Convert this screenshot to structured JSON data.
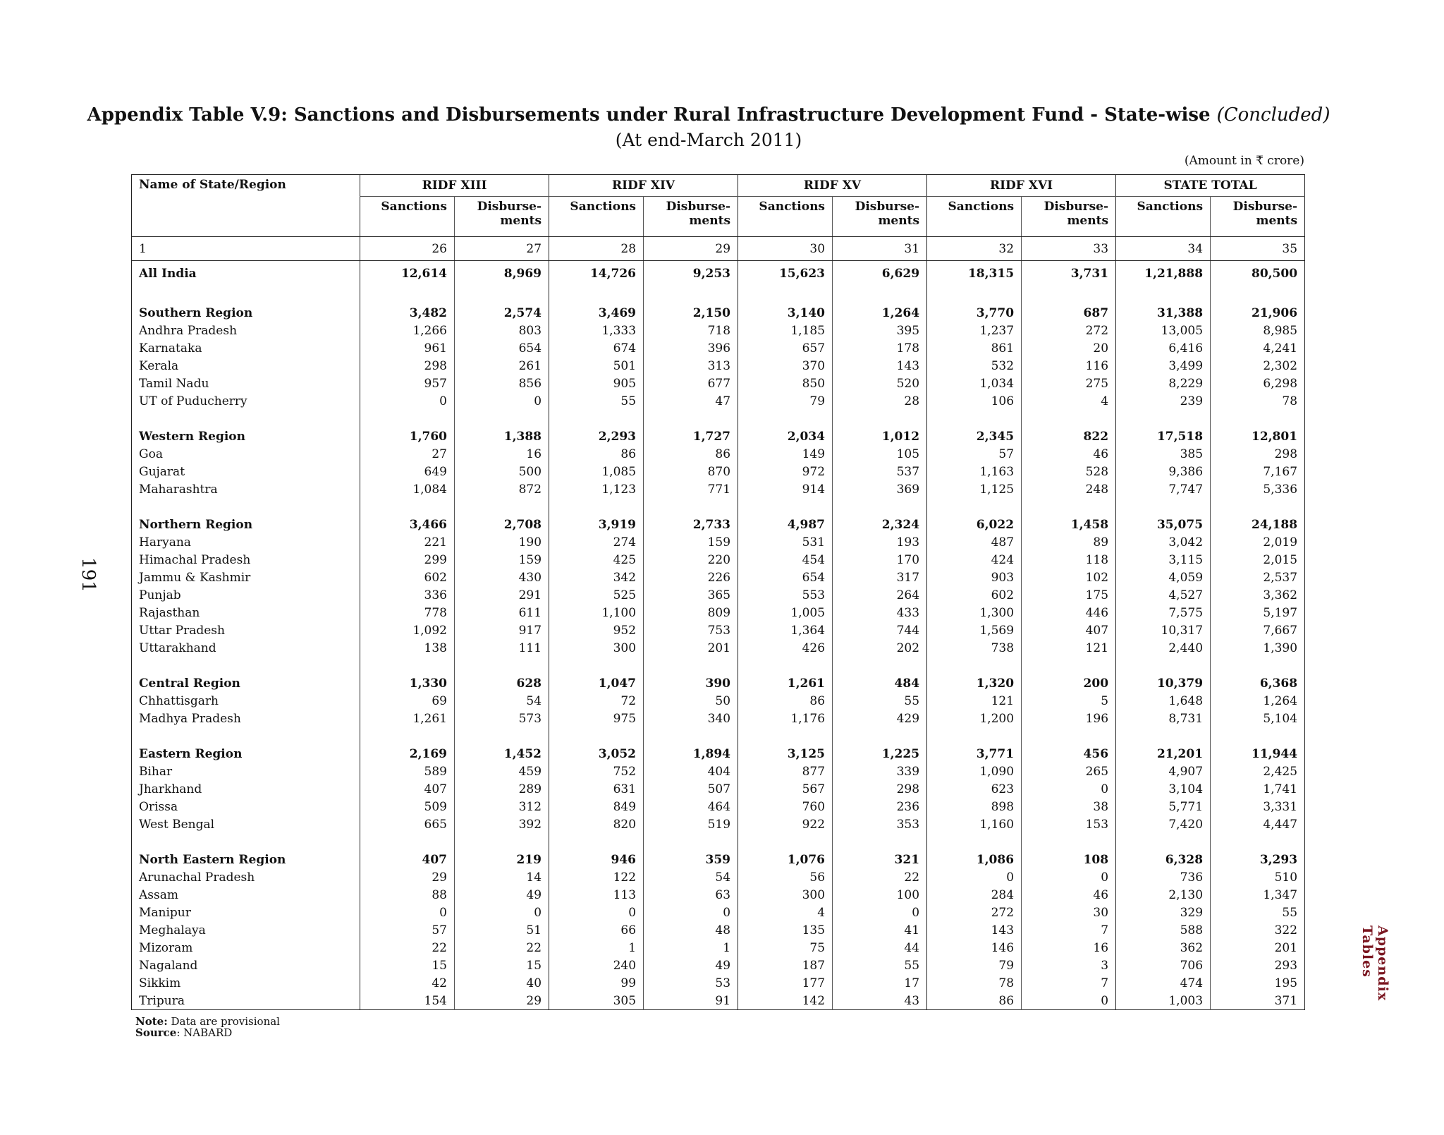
{
  "header": {
    "title": "Appendix Table V.9: Sanctions and Disbursements under Rural Infrastructure Development Fund - State-wise",
    "title_suffix": "(Concluded)",
    "subtitle": "(At end-March 2011)",
    "unit": "(Amount in ₹ crore)"
  },
  "page_number": "191",
  "side_label": "Appendix Tables",
  "table": {
    "name_header": "Name of State/Region",
    "groups": [
      "RIDF XIII",
      "RIDF XIV",
      "RIDF XV",
      "RIDF XVI",
      "STATE TOTAL"
    ],
    "subheaders": [
      "Sanctions",
      "Disburse-\nments"
    ],
    "column_numbers": [
      "1",
      "26",
      "27",
      "28",
      "29",
      "30",
      "31",
      "32",
      "33",
      "34",
      "35"
    ],
    "sections": [
      [
        [
          "All India",
          "12,614",
          "8,969",
          "14,726",
          "9,253",
          "15,623",
          "6,629",
          "18,315",
          "3,731",
          "1,21,888",
          "80,500"
        ]
      ],
      [
        [
          "Southern Region",
          "3,482",
          "2,574",
          "3,469",
          "2,150",
          "3,140",
          "1,264",
          "3,770",
          "687",
          "31,388",
          "21,906"
        ],
        [
          "Andhra Pradesh",
          "1,266",
          "803",
          "1,333",
          "718",
          "1,185",
          "395",
          "1,237",
          "272",
          "13,005",
          "8,985"
        ],
        [
          "Karnataka",
          "961",
          "654",
          "674",
          "396",
          "657",
          "178",
          "861",
          "20",
          "6,416",
          "4,241"
        ],
        [
          "Kerala",
          "298",
          "261",
          "501",
          "313",
          "370",
          "143",
          "532",
          "116",
          "3,499",
          "2,302"
        ],
        [
          "Tamil Nadu",
          "957",
          "856",
          "905",
          "677",
          "850",
          "520",
          "1,034",
          "275",
          "8,229",
          "6,298"
        ],
        [
          "UT of Puducherry",
          "0",
          "0",
          "55",
          "47",
          "79",
          "28",
          "106",
          "4",
          "239",
          "78"
        ]
      ],
      [
        [
          "Western Region",
          "1,760",
          "1,388",
          "2,293",
          "1,727",
          "2,034",
          "1,012",
          "2,345",
          "822",
          "17,518",
          "12,801"
        ],
        [
          "Goa",
          "27",
          "16",
          "86",
          "86",
          "149",
          "105",
          "57",
          "46",
          "385",
          "298"
        ],
        [
          "Gujarat",
          "649",
          "500",
          "1,085",
          "870",
          "972",
          "537",
          "1,163",
          "528",
          "9,386",
          "7,167"
        ],
        [
          "Maharashtra",
          "1,084",
          "872",
          "1,123",
          "771",
          "914",
          "369",
          "1,125",
          "248",
          "7,747",
          "5,336"
        ]
      ],
      [
        [
          "Northern Region",
          "3,466",
          "2,708",
          "3,919",
          "2,733",
          "4,987",
          "2,324",
          "6,022",
          "1,458",
          "35,075",
          "24,188"
        ],
        [
          "Haryana",
          "221",
          "190",
          "274",
          "159",
          "531",
          "193",
          "487",
          "89",
          "3,042",
          "2,019"
        ],
        [
          "Himachal Pradesh",
          "299",
          "159",
          "425",
          "220",
          "454",
          "170",
          "424",
          "118",
          "3,115",
          "2,015"
        ],
        [
          "Jammu & Kashmir",
          "602",
          "430",
          "342",
          "226",
          "654",
          "317",
          "903",
          "102",
          "4,059",
          "2,537"
        ],
        [
          "Punjab",
          "336",
          "291",
          "525",
          "365",
          "553",
          "264",
          "602",
          "175",
          "4,527",
          "3,362"
        ],
        [
          "Rajasthan",
          "778",
          "611",
          "1,100",
          "809",
          "1,005",
          "433",
          "1,300",
          "446",
          "7,575",
          "5,197"
        ],
        [
          "Uttar Pradesh",
          "1,092",
          "917",
          "952",
          "753",
          "1,364",
          "744",
          "1,569",
          "407",
          "10,317",
          "7,667"
        ],
        [
          "Uttarakhand",
          "138",
          "111",
          "300",
          "201",
          "426",
          "202",
          "738",
          "121",
          "2,440",
          "1,390"
        ]
      ],
      [
        [
          "Central Region",
          "1,330",
          "628",
          "1,047",
          "390",
          "1,261",
          "484",
          "1,320",
          "200",
          "10,379",
          "6,368"
        ],
        [
          "Chhattisgarh",
          "69",
          "54",
          "72",
          "50",
          "86",
          "55",
          "121",
          "5",
          "1,648",
          "1,264"
        ],
        [
          "Madhya Pradesh",
          "1,261",
          "573",
          "975",
          "340",
          "1,176",
          "429",
          "1,200",
          "196",
          "8,731",
          "5,104"
        ]
      ],
      [
        [
          "Eastern Region",
          "2,169",
          "1,452",
          "3,052",
          "1,894",
          "3,125",
          "1,225",
          "3,771",
          "456",
          "21,201",
          "11,944"
        ],
        [
          "Bihar",
          "589",
          "459",
          "752",
          "404",
          "877",
          "339",
          "1,090",
          "265",
          "4,907",
          "2,425"
        ],
        [
          "Jharkhand",
          "407",
          "289",
          "631",
          "507",
          "567",
          "298",
          "623",
          "0",
          "3,104",
          "1,741"
        ],
        [
          "Orissa",
          "509",
          "312",
          "849",
          "464",
          "760",
          "236",
          "898",
          "38",
          "5,771",
          "3,331"
        ],
        [
          "West Bengal",
          "665",
          "392",
          "820",
          "519",
          "922",
          "353",
          "1,160",
          "153",
          "7,420",
          "4,447"
        ]
      ],
      [
        [
          "North Eastern Region",
          "407",
          "219",
          "946",
          "359",
          "1,076",
          "321",
          "1,086",
          "108",
          "6,328",
          "3,293"
        ],
        [
          "Arunachal Pradesh",
          "29",
          "14",
          "122",
          "54",
          "56",
          "22",
          "0",
          "0",
          "736",
          "510"
        ],
        [
          "Assam",
          "88",
          "49",
          "113",
          "63",
          "300",
          "100",
          "284",
          "46",
          "2,130",
          "1,347"
        ],
        [
          "Manipur",
          "0",
          "0",
          "0",
          "0",
          "4",
          "0",
          "272",
          "30",
          "329",
          "55"
        ],
        [
          "Meghalaya",
          "57",
          "51",
          "66",
          "48",
          "135",
          "41",
          "143",
          "7",
          "588",
          "322"
        ],
        [
          "Mizoram",
          "22",
          "22",
          "1",
          "1",
          "75",
          "44",
          "146",
          "16",
          "362",
          "201"
        ],
        [
          "Nagaland",
          "15",
          "15",
          "240",
          "49",
          "187",
          "55",
          "79",
          "3",
          "706",
          "293"
        ],
        [
          "Sikkim",
          "42",
          "40",
          "99",
          "53",
          "177",
          "17",
          "78",
          "7",
          "474",
          "195"
        ],
        [
          "Tripura",
          "154",
          "29",
          "305",
          "91",
          "142",
          "43",
          "86",
          "0",
          "1,003",
          "371"
        ]
      ]
    ]
  },
  "footer": {
    "note_label": "Note:",
    "note_text": "Data are provisional",
    "source_label": "Source",
    "source_text": ": NABARD"
  }
}
